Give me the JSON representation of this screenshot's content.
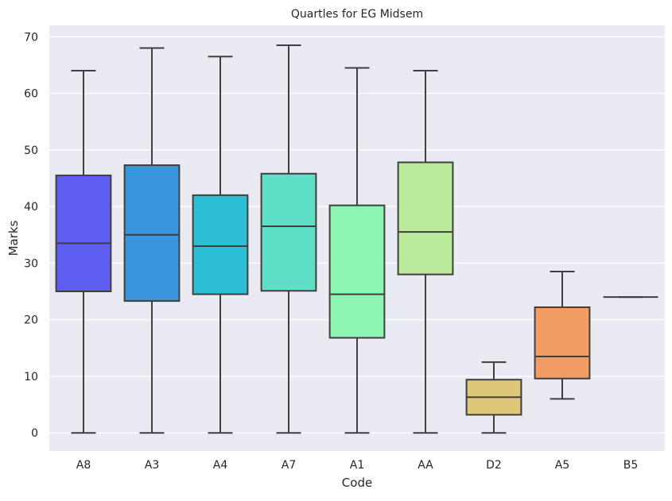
{
  "chart_data": {
    "type": "box",
    "title": "Quartles for EG Midsem",
    "xlabel": "Code",
    "ylabel": "Marks",
    "ylim": [
      -3.2,
      72
    ],
    "yticks": [
      0,
      10,
      20,
      30,
      40,
      50,
      60,
      70
    ],
    "grid": true,
    "categories": [
      "A8",
      "A3",
      "A4",
      "A7",
      "A1",
      "AA",
      "D2",
      "A5",
      "B5"
    ],
    "boxes": [
      {
        "category": "A8",
        "whisker_low": 0,
        "q1": 25,
        "median": 33.5,
        "q3": 45.5,
        "whisker_high": 64,
        "color": "#5e5ff0"
      },
      {
        "category": "A3",
        "whisker_low": 0,
        "q1": 23.3,
        "median": 35,
        "q3": 47.3,
        "whisker_high": 68,
        "color": "#3996dd"
      },
      {
        "category": "A4",
        "whisker_low": 0,
        "q1": 24.5,
        "median": 33,
        "q3": 42,
        "whisker_high": 66.5,
        "color": "#2dbfd6"
      },
      {
        "category": "A7",
        "whisker_low": 0,
        "q1": 25.1,
        "median": 36.5,
        "q3": 45.8,
        "whisker_high": 68.5,
        "color": "#5fdfc7"
      },
      {
        "category": "A1",
        "whisker_low": 0,
        "q1": 16.8,
        "median": 24.5,
        "q3": 40.2,
        "whisker_high": 64.5,
        "color": "#8cf5b1"
      },
      {
        "category": "AA",
        "whisker_low": 0,
        "q1": 28,
        "median": 35.5,
        "q3": 47.8,
        "whisker_high": 64,
        "color": "#bbeb9a"
      },
      {
        "category": "D2",
        "whisker_low": 0,
        "q1": 3.2,
        "median": 6.3,
        "q3": 9.4,
        "whisker_high": 12.5,
        "color": "#dfc77a"
      },
      {
        "category": "A5",
        "whisker_low": 6,
        "q1": 9.6,
        "median": 13.5,
        "q3": 22.2,
        "whisker_high": 28.5,
        "color": "#f19c62"
      },
      {
        "category": "B5",
        "whisker_low": 24,
        "q1": 24,
        "median": 24,
        "q3": 24,
        "whisker_high": 24,
        "color": "#e8765a"
      }
    ]
  }
}
